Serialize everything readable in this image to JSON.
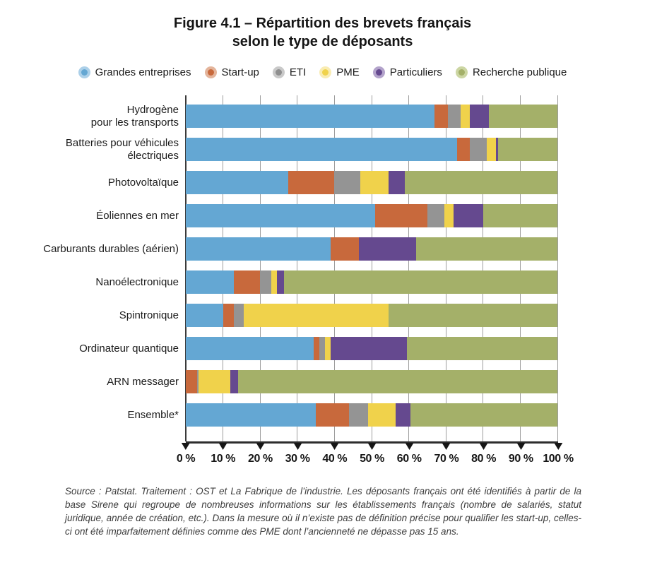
{
  "title": {
    "line1": "Figure 4.1 – Répartition des brevets français",
    "line2": "selon le type de déposants"
  },
  "legend": [
    {
      "label": "Grandes entreprises",
      "color": "#64a7d3",
      "light": "#acd0e9"
    },
    {
      "label": "Start-up",
      "color": "#c8693c",
      "light": "#e4b59c"
    },
    {
      "label": "ETI",
      "color": "#8f8f8f",
      "light": "#c9c9c9"
    },
    {
      "label": "PME",
      "color": "#f0d24b",
      "light": "#f9ecb2"
    },
    {
      "label": "Particuliers",
      "color": "#65498f",
      "light": "#b3a3cb"
    },
    {
      "label": "Recherche publique",
      "color": "#a4b069",
      "light": "#ccd6a3"
    }
  ],
  "chart_data": {
    "type": "bar",
    "orientation": "horizontal",
    "stacked": true,
    "unit": "%",
    "gridlines": true,
    "legend_position": "top",
    "categories": [
      "Hydrogène\npour les transports",
      "Batteries pour véhicules\nélectriques",
      "Photovoltaïque",
      "Éoliennes en mer",
      "Carburants durables (aérien)",
      "Nanoélectronique",
      "Spintronique",
      "Ordinateur quantique",
      "ARN messager",
      "Ensemble*"
    ],
    "series": [
      {
        "name": "Grandes entreprises",
        "color": "#64a7d3",
        "values": [
          67,
          73,
          27.5,
          51,
          39,
          13,
          10,
          34.5,
          0,
          35
        ]
      },
      {
        "name": "Start-up",
        "color": "#c8693c",
        "values": [
          3.5,
          3.5,
          12.5,
          14,
          7.5,
          7,
          3,
          1.5,
          3,
          9
        ]
      },
      {
        "name": "ETI",
        "color": "#949494",
        "values": [
          3.5,
          4.5,
          7,
          4.5,
          0,
          3,
          2.5,
          1.5,
          0.5,
          5
        ]
      },
      {
        "name": "PME",
        "color": "#f0d24b",
        "values": [
          2.5,
          2.5,
          7.5,
          2.5,
          0,
          1.5,
          39,
          1.5,
          8.5,
          7.5
        ]
      },
      {
        "name": "Particuliers",
        "color": "#65498f",
        "values": [
          5,
          0.5,
          4.5,
          8,
          15.5,
          2,
          0,
          20.5,
          2,
          4
        ]
      },
      {
        "name": "Recherche publique",
        "color": "#a4b069",
        "values": [
          18.5,
          16,
          41,
          20,
          38,
          73.5,
          45.5,
          40.5,
          86,
          39.5
        ]
      }
    ],
    "x_axis": {
      "min": 0,
      "max": 100,
      "tick_step": 10,
      "ticks": [
        "0 %",
        "10 %",
        "20 %",
        "30 %",
        "40 %",
        "50 %",
        "60 %",
        "70 %",
        "80 %",
        "90 %",
        "100 %"
      ]
    }
  },
  "source_text": "Source : Patstat. Traitement : OST et La Fabrique de l’industrie. Les déposants français ont été identifiés à partir de la base Sirene qui regroupe de nombreuses informations sur les établissements français (nombre de salariés, statut juridique, année de création, etc.). Dans la mesure où il n’existe pas de définition précise pour qualifier les start-up, celles-ci ont été imparfaitement définies comme des PME dont l’ancienneté ne dépasse pas 15 ans."
}
